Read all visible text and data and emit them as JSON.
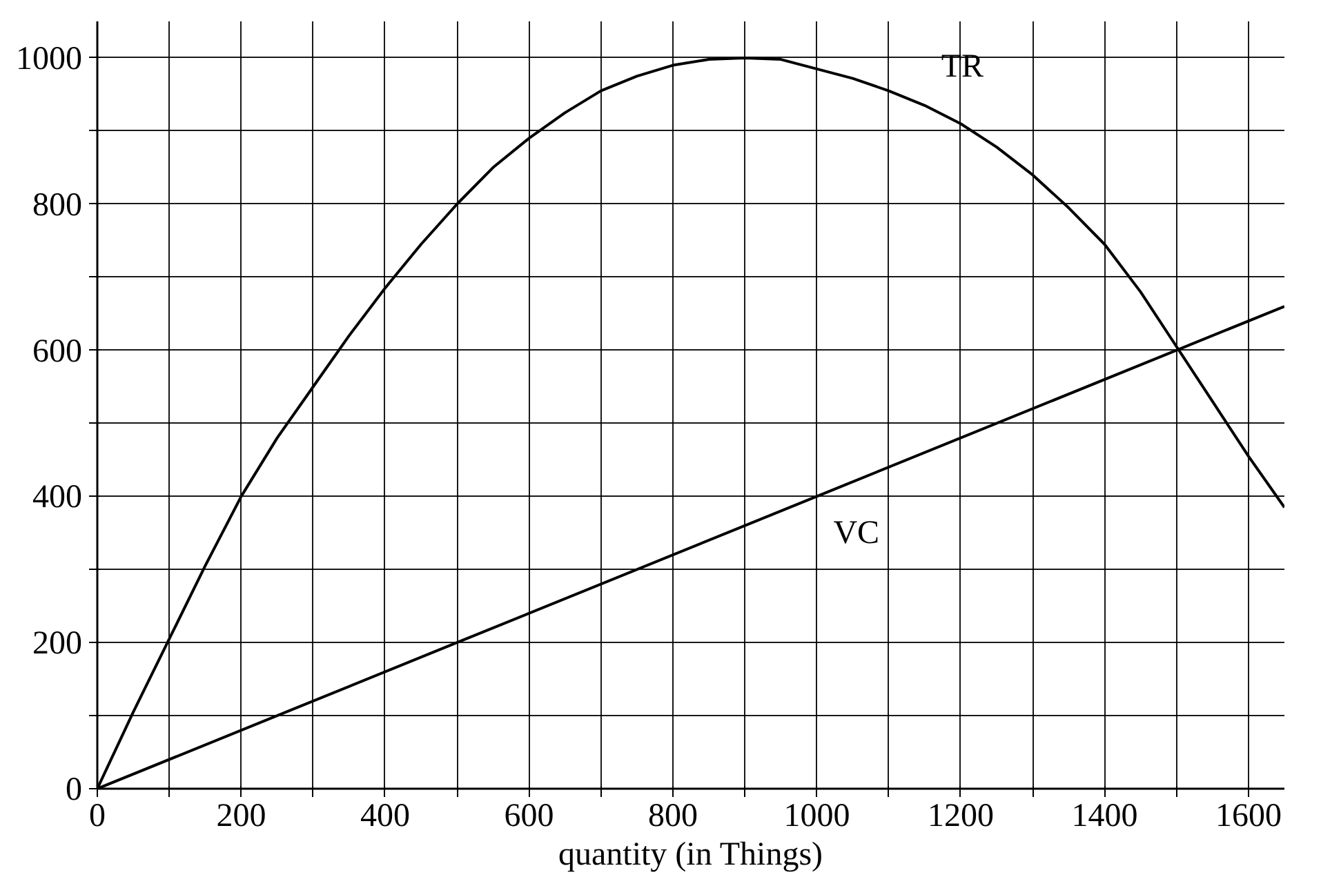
{
  "chart_data": {
    "type": "line",
    "xlabel": "quantity (in Things)",
    "x": [
      0,
      50,
      100,
      150,
      200,
      250,
      300,
      350,
      400,
      450,
      500,
      550,
      600,
      650,
      700,
      750,
      800,
      850,
      900,
      950,
      1000,
      1050,
      1100,
      1150,
      1200,
      1250,
      1300,
      1350,
      1400,
      1450,
      1500,
      1550,
      1600,
      1650
    ],
    "series": [
      {
        "name": "TR",
        "color": "#000000",
        "values": [
          0,
          105,
          205,
          305,
          400,
          480,
          550,
          620,
          685,
          745,
          800,
          850,
          890,
          925,
          955,
          975,
          990,
          998,
          1000,
          998,
          985,
          972,
          955,
          935,
          910,
          878,
          840,
          795,
          745,
          680,
          605,
          530,
          455,
          385
        ]
      },
      {
        "name": "VC",
        "color": "#000000",
        "x": [
          0,
          500,
          1000,
          1650
        ],
        "values": [
          0,
          200,
          400,
          660
        ]
      }
    ],
    "xlim": [
      0,
      1650
    ],
    "ylim": [
      0,
      1050
    ],
    "xticks": [
      0,
      {
        "value": 100,
        "label": null
      },
      200,
      {
        "value": 300,
        "label": null
      },
      400,
      {
        "value": 500,
        "label": null
      },
      600,
      {
        "value": 700,
        "label": null
      },
      800,
      {
        "value": 900,
        "label": null
      },
      1000,
      {
        "value": 1100,
        "label": null
      },
      1200,
      {
        "value": 1300,
        "label": null
      },
      1400,
      {
        "value": 1500,
        "label": null
      },
      1600
    ],
    "yticks": [
      0,
      {
        "value": 100,
        "label": null
      },
      200,
      {
        "value": 300,
        "label": null
      },
      400,
      {
        "value": 500,
        "label": null
      },
      600,
      {
        "value": 700,
        "label": null
      },
      800,
      {
        "value": 900,
        "label": null
      },
      1000
    ],
    "grid": true,
    "marker": "none",
    "line_style": "solid"
  }
}
